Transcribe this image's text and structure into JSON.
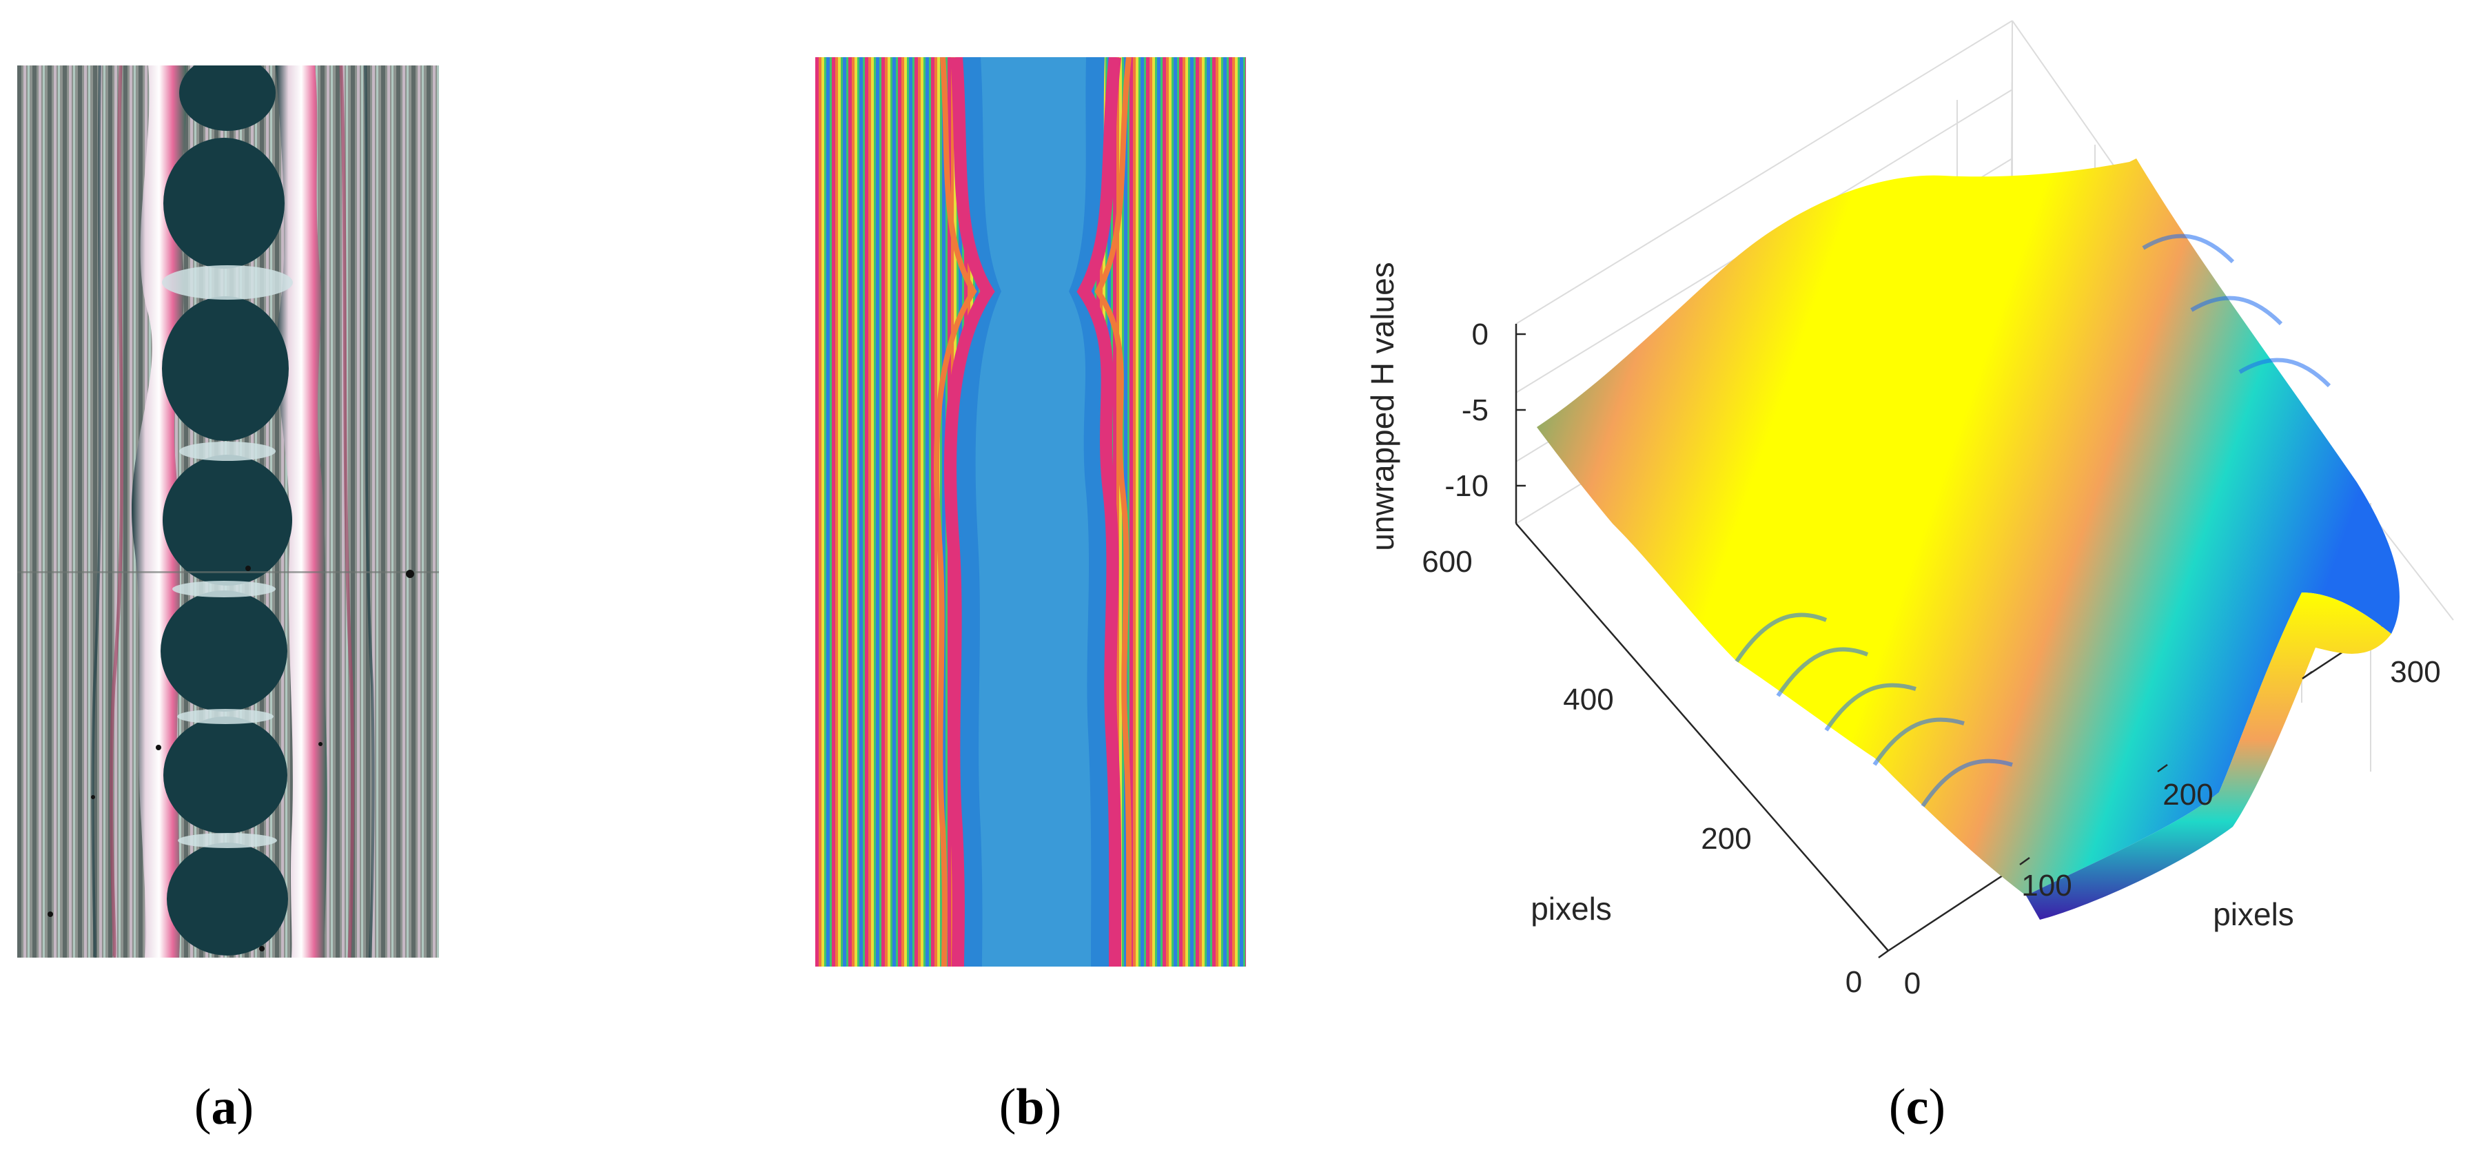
{
  "figure": {
    "captions": {
      "a": {
        "open": "(",
        "letter": "a",
        "close": ")"
      },
      "b": {
        "open": "(",
        "letter": "b",
        "close": ")"
      },
      "c": {
        "open": "(",
        "letter": "c",
        "close": ")"
      }
    }
  },
  "chart_data": {
    "type": "surface",
    "zlabel": "unwrapped H values",
    "xlabel": "pixels",
    "ylabel": "pixels",
    "x_ticks": [
      "0",
      "100",
      "200",
      "300"
    ],
    "y_ticks": [
      "0",
      "200",
      "400",
      "600"
    ],
    "z_ticks": [
      "0",
      "-5",
      "-10"
    ],
    "xlim": [
      0,
      300
    ],
    "ylim": [
      0,
      600
    ],
    "zlim": [
      -12,
      0
    ],
    "colormap": [
      "#3b1fa8",
      "#1e6cf0",
      "#1fd8c8",
      "#5fe05a",
      "#f4a25a",
      "#ffff00"
    ],
    "grid": true
  }
}
